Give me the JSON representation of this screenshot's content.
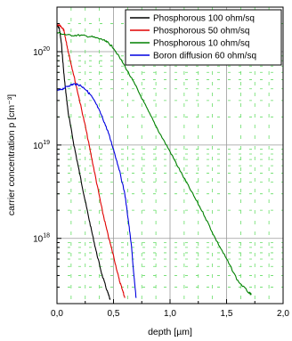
{
  "chart_data": {
    "type": "line",
    "xlabel": "depth [µm]",
    "ylabel": "carrier concentration p [cm⁻³]",
    "xlim": [
      0,
      2
    ],
    "ylim": [
      2e+17,
      3e+20
    ],
    "yscale": "log",
    "x_ticks": [
      {
        "value": 0,
        "label": "0,0"
      },
      {
        "value": 0.5,
        "label": "0,5"
      },
      {
        "value": 1.0,
        "label": "1,0"
      },
      {
        "value": 1.5,
        "label": "1,5"
      },
      {
        "value": 2.0,
        "label": "2,0"
      }
    ],
    "y_ticks": [
      {
        "value": 1e+18,
        "base": "10",
        "exp": "18"
      },
      {
        "value": 1e+19,
        "base": "10",
        "exp": "19"
      },
      {
        "value": 1e+20,
        "base": "10",
        "exp": "20"
      }
    ],
    "grid": true,
    "legend_position": "top-right",
    "series": [
      {
        "name": "Phosphorous 100 ohm/sq",
        "color": "#000000",
        "x": [
          0.0,
          0.02,
          0.04,
          0.06,
          0.08,
          0.1,
          0.15,
          0.2,
          0.25,
          0.3,
          0.35,
          0.4,
          0.45,
          0.47
        ],
        "y": [
          1.9e+20,
          1.8e+20,
          1.2e+20,
          6e+19,
          3.5e+19,
          2.2e+19,
          1e+19,
          5e+18,
          2.5e+18,
          1.3e+18,
          7e+17,
          4e+17,
          2.6e+17,
          2.2e+17
        ]
      },
      {
        "name": "Phosphorous 50 ohm/sq",
        "color": "#e00000",
        "x": [
          0.0,
          0.03,
          0.06,
          0.08,
          0.1,
          0.15,
          0.2,
          0.25,
          0.3,
          0.35,
          0.4,
          0.45,
          0.5,
          0.55,
          0.58,
          0.6
        ],
        "y": [
          1.9e+20,
          1.9e+20,
          1.7e+20,
          1.3e+20,
          1e+20,
          5.5e+19,
          3e+19,
          1.6e+19,
          8e+18,
          4e+18,
          2e+18,
          1.1e+18,
          6.5e+17,
          3.6e+17,
          2.8e+17,
          2.3e+17
        ]
      },
      {
        "name": "Phosphorous 10 ohm/sq",
        "color": "#008000",
        "x": [
          0.0,
          0.1,
          0.2,
          0.3,
          0.4,
          0.45,
          0.5,
          0.6,
          0.7,
          0.8,
          0.9,
          1.0,
          1.1,
          1.2,
          1.3,
          1.4,
          1.5,
          1.6,
          1.7,
          1.72
        ],
        "y": [
          1.6e+20,
          1.5e+20,
          1.5e+20,
          1.45e+20,
          1.35e+20,
          1.25e+20,
          1.1e+20,
          7e+19,
          4.2e+19,
          2.4e+19,
          1.4e+19,
          8.5e+18,
          5e+18,
          3e+18,
          1.8e+18,
          1e+18,
          6e+17,
          3.5e+17,
          2.6e+17,
          2.5e+17
        ]
      },
      {
        "name": "Boron diffusion 60 ohm/sq",
        "color": "#0000e0",
        "x": [
          0.0,
          0.05,
          0.1,
          0.15,
          0.2,
          0.25,
          0.3,
          0.35,
          0.4,
          0.45,
          0.5,
          0.55,
          0.6,
          0.63,
          0.66,
          0.68,
          0.7
        ],
        "y": [
          3.8e+19,
          4e+19,
          4.3e+19,
          4.5e+19,
          4.4e+19,
          4e+19,
          3.4e+19,
          2.7e+19,
          2e+19,
          1.4e+19,
          9e+18,
          5.5e+18,
          3e+18,
          1.6e+18,
          8e+17,
          4e+17,
          2.3e+17
        ]
      }
    ]
  }
}
